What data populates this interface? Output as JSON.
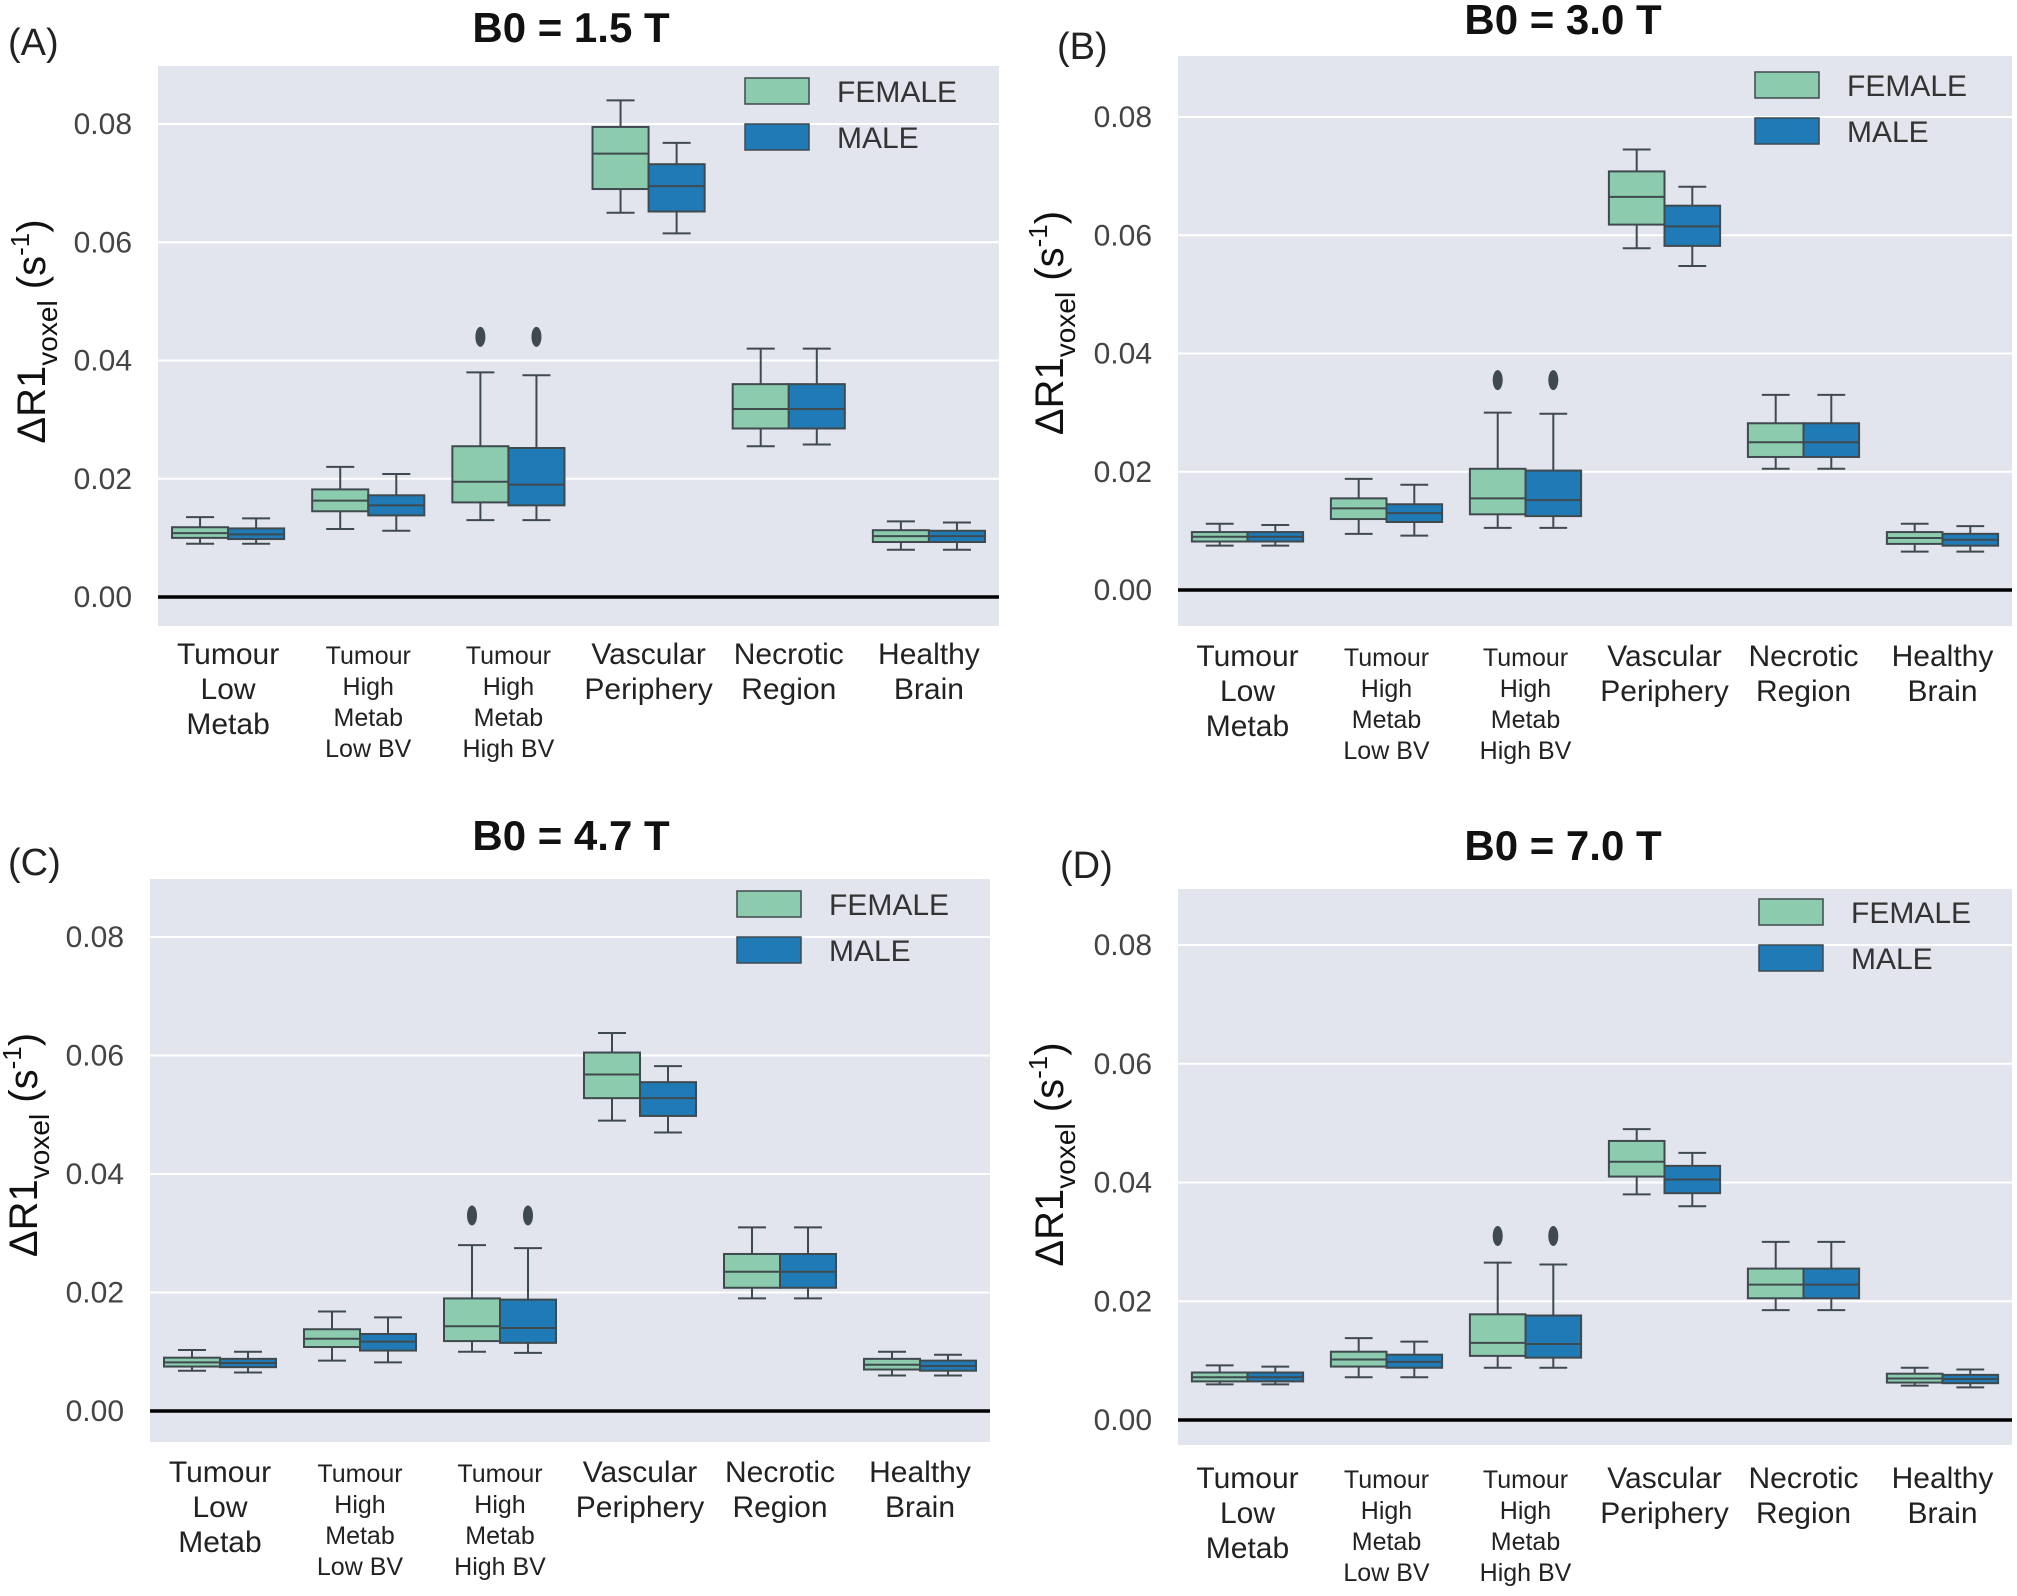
{
  "chart_data": [
    {
      "type": "box",
      "panel": "(A)",
      "title": "B0 = 1.5 T",
      "ylabel": {
        "main": "ΔR1",
        "sub": "voxel",
        "unit_open": " (s",
        "sup": "-1",
        "unit_close": ")"
      },
      "yticks": [
        "0.00",
        "0.02",
        "0.04",
        "0.06",
        "0.08"
      ],
      "ylim": [
        -0.005,
        0.09
      ],
      "legend": "top-right",
      "grid": true,
      "categories": [
        [
          "Tumour",
          "Low",
          "Metab"
        ],
        [
          "Tumour",
          "High",
          "Metab",
          "Low BV"
        ],
        [
          "Tumour",
          "High",
          "Metab",
          "High BV"
        ],
        [
          "Vascular",
          "Periphery"
        ],
        [
          "Necrotic",
          "Region"
        ],
        [
          "Healthy",
          "Brain"
        ]
      ],
      "series": [
        {
          "name": "FEMALE",
          "color": "#8ccbae",
          "boxes": [
            {
              "whislo": 0.009,
              "q1": 0.01,
              "med": 0.0108,
              "q3": 0.0118,
              "whishi": 0.0135,
              "fliers": []
            },
            {
              "whislo": 0.0115,
              "q1": 0.0145,
              "med": 0.0163,
              "q3": 0.0182,
              "whishi": 0.022,
              "fliers": []
            },
            {
              "whislo": 0.013,
              "q1": 0.016,
              "med": 0.0195,
              "q3": 0.0255,
              "whishi": 0.038,
              "fliers": [
                0.044
              ]
            },
            {
              "whislo": 0.065,
              "q1": 0.069,
              "med": 0.075,
              "q3": 0.0795,
              "whishi": 0.084,
              "fliers": []
            },
            {
              "whislo": 0.0255,
              "q1": 0.0285,
              "med": 0.0318,
              "q3": 0.036,
              "whishi": 0.042,
              "fliers": []
            },
            {
              "whislo": 0.008,
              "q1": 0.0093,
              "med": 0.0103,
              "q3": 0.0113,
              "whishi": 0.0128,
              "fliers": []
            }
          ]
        },
        {
          "name": "MALE",
          "color": "#1f7ab5",
          "boxes": [
            {
              "whislo": 0.009,
              "q1": 0.0098,
              "med": 0.0106,
              "q3": 0.0116,
              "whishi": 0.0133,
              "fliers": []
            },
            {
              "whislo": 0.0112,
              "q1": 0.0138,
              "med": 0.0155,
              "q3": 0.0172,
              "whishi": 0.0208,
              "fliers": []
            },
            {
              "whislo": 0.013,
              "q1": 0.0155,
              "med": 0.019,
              "q3": 0.0252,
              "whishi": 0.0375,
              "fliers": [
                0.044
              ]
            },
            {
              "whislo": 0.0615,
              "q1": 0.0652,
              "med": 0.0695,
              "q3": 0.0732,
              "whishi": 0.0768,
              "fliers": []
            },
            {
              "whislo": 0.0258,
              "q1": 0.0285,
              "med": 0.0318,
              "q3": 0.036,
              "whishi": 0.042,
              "fliers": []
            },
            {
              "whislo": 0.008,
              "q1": 0.0093,
              "med": 0.0103,
              "q3": 0.0112,
              "whishi": 0.0126,
              "fliers": []
            }
          ]
        }
      ]
    },
    {
      "type": "box",
      "panel": "(B)",
      "title": "B0 = 3.0 T",
      "ylabel": {
        "main": "ΔR1",
        "sub": "voxel",
        "unit_open": " (s",
        "sup": "-1",
        "unit_close": ")"
      },
      "yticks": [
        "0.00",
        "0.02",
        "0.04",
        "0.06",
        "0.08"
      ],
      "ylim": [
        -0.005,
        0.09
      ],
      "legend": "top-right",
      "grid": true,
      "categories": [
        [
          "Tumour",
          "Low",
          "Metab"
        ],
        [
          "Tumour",
          "High",
          "Metab",
          "Low BV"
        ],
        [
          "Tumour",
          "High",
          "Metab",
          "High BV"
        ],
        [
          "Vascular",
          "Periphery"
        ],
        [
          "Necrotic",
          "Region"
        ],
        [
          "Healthy",
          "Brain"
        ]
      ],
      "series": [
        {
          "name": "FEMALE",
          "color": "#8ccbae",
          "boxes": [
            {
              "whislo": 0.0075,
              "q1": 0.0082,
              "med": 0.009,
              "q3": 0.0098,
              "whishi": 0.0112,
              "fliers": []
            },
            {
              "whislo": 0.0095,
              "q1": 0.012,
              "med": 0.0138,
              "q3": 0.0155,
              "whishi": 0.0188,
              "fliers": []
            },
            {
              "whislo": 0.0105,
              "q1": 0.0128,
              "med": 0.0155,
              "q3": 0.0205,
              "whishi": 0.03,
              "fliers": [
                0.0355
              ]
            },
            {
              "whislo": 0.0578,
              "q1": 0.0618,
              "med": 0.0665,
              "q3": 0.0708,
              "whishi": 0.0745,
              "fliers": []
            },
            {
              "whislo": 0.0205,
              "q1": 0.0225,
              "med": 0.025,
              "q3": 0.0282,
              "whishi": 0.033,
              "fliers": []
            },
            {
              "whislo": 0.0065,
              "q1": 0.0078,
              "med": 0.0088,
              "q3": 0.0098,
              "whishi": 0.0112,
              "fliers": []
            }
          ]
        },
        {
          "name": "MALE",
          "color": "#1f7ab5",
          "boxes": [
            {
              "whislo": 0.0075,
              "q1": 0.0082,
              "med": 0.009,
              "q3": 0.0098,
              "whishi": 0.011,
              "fliers": []
            },
            {
              "whislo": 0.0092,
              "q1": 0.0115,
              "med": 0.013,
              "q3": 0.0145,
              "whishi": 0.0178,
              "fliers": []
            },
            {
              "whislo": 0.0105,
              "q1": 0.0125,
              "med": 0.0152,
              "q3": 0.0202,
              "whishi": 0.0298,
              "fliers": [
                0.0355
              ]
            },
            {
              "whislo": 0.0548,
              "q1": 0.0582,
              "med": 0.0615,
              "q3": 0.065,
              "whishi": 0.0682,
              "fliers": []
            },
            {
              "whislo": 0.0205,
              "q1": 0.0225,
              "med": 0.025,
              "q3": 0.0282,
              "whishi": 0.033,
              "fliers": []
            },
            {
              "whislo": 0.0065,
              "q1": 0.0075,
              "med": 0.0085,
              "q3": 0.0095,
              "whishi": 0.0108,
              "fliers": []
            }
          ]
        }
      ]
    },
    {
      "type": "box",
      "panel": "(C)",
      "title": "B0 = 4.7 T",
      "ylabel": {
        "main": "ΔR1",
        "sub": "voxel",
        "unit_open": " (s",
        "sup": "-1",
        "unit_close": ")"
      },
      "yticks": [
        "0.00",
        "0.02",
        "0.04",
        "0.06",
        "0.08"
      ],
      "ylim": [
        -0.005,
        0.09
      ],
      "legend": "top-right",
      "grid": true,
      "categories": [
        [
          "Tumour",
          "Low",
          "Metab"
        ],
        [
          "Tumour",
          "High",
          "Metab",
          "Low BV"
        ],
        [
          "Tumour",
          "High",
          "Metab",
          "High BV"
        ],
        [
          "Vascular",
          "Periphery"
        ],
        [
          "Necrotic",
          "Region"
        ],
        [
          "Healthy",
          "Brain"
        ]
      ],
      "series": [
        {
          "name": "FEMALE",
          "color": "#8ccbae",
          "boxes": [
            {
              "whislo": 0.0068,
              "q1": 0.0075,
              "med": 0.0082,
              "q3": 0.009,
              "whishi": 0.0103,
              "fliers": []
            },
            {
              "whislo": 0.0085,
              "q1": 0.0108,
              "med": 0.0122,
              "q3": 0.0138,
              "whishi": 0.0168,
              "fliers": []
            },
            {
              "whislo": 0.01,
              "q1": 0.0118,
              "med": 0.0143,
              "q3": 0.019,
              "whishi": 0.028,
              "fliers": [
                0.033
              ]
            },
            {
              "whislo": 0.049,
              "q1": 0.0528,
              "med": 0.0568,
              "q3": 0.0605,
              "whishi": 0.0638,
              "fliers": []
            },
            {
              "whislo": 0.019,
              "q1": 0.0208,
              "med": 0.0235,
              "q3": 0.0265,
              "whishi": 0.031,
              "fliers": []
            },
            {
              "whislo": 0.006,
              "q1": 0.007,
              "med": 0.0078,
              "q3": 0.0088,
              "whishi": 0.01,
              "fliers": []
            }
          ]
        },
        {
          "name": "MALE",
          "color": "#1f7ab5",
          "boxes": [
            {
              "whislo": 0.0065,
              "q1": 0.0074,
              "med": 0.0081,
              "q3": 0.0088,
              "whishi": 0.01,
              "fliers": []
            },
            {
              "whislo": 0.0082,
              "q1": 0.0102,
              "med": 0.0117,
              "q3": 0.013,
              "whishi": 0.0158,
              "fliers": []
            },
            {
              "whislo": 0.0098,
              "q1": 0.0115,
              "med": 0.014,
              "q3": 0.0188,
              "whishi": 0.0275,
              "fliers": [
                0.033
              ]
            },
            {
              "whislo": 0.047,
              "q1": 0.0498,
              "med": 0.0528,
              "q3": 0.0555,
              "whishi": 0.0582,
              "fliers": []
            },
            {
              "whislo": 0.019,
              "q1": 0.0208,
              "med": 0.0235,
              "q3": 0.0265,
              "whishi": 0.031,
              "fliers": []
            },
            {
              "whislo": 0.006,
              "q1": 0.0068,
              "med": 0.0076,
              "q3": 0.0085,
              "whishi": 0.0095,
              "fliers": []
            }
          ]
        }
      ]
    },
    {
      "type": "box",
      "panel": "(D)",
      "title": "B0 = 7.0 T",
      "ylabel": {
        "main": "ΔR1",
        "sub": "voxel",
        "unit_open": " (s",
        "sup": "-1",
        "unit_close": ")"
      },
      "yticks": [
        "0.00",
        "0.02",
        "0.04",
        "0.06",
        "0.08"
      ],
      "ylim": [
        -0.005,
        0.09
      ],
      "legend": "top-right",
      "grid": true,
      "categories": [
        [
          "Tumour",
          "Low",
          "Metab"
        ],
        [
          "Tumour",
          "High",
          "Metab",
          "Low BV"
        ],
        [
          "Tumour",
          "High",
          "Metab",
          "High BV"
        ],
        [
          "Vascular",
          "Periphery"
        ],
        [
          "Necrotic",
          "Region"
        ],
        [
          "Healthy",
          "Brain"
        ]
      ],
      "series": [
        {
          "name": "FEMALE",
          "color": "#8ccbae",
          "boxes": [
            {
              "whislo": 0.006,
              "q1": 0.0065,
              "med": 0.0072,
              "q3": 0.008,
              "whishi": 0.0092,
              "fliers": []
            },
            {
              "whislo": 0.0072,
              "q1": 0.009,
              "med": 0.0102,
              "q3": 0.0115,
              "whishi": 0.0138,
              "fliers": []
            },
            {
              "whislo": 0.0088,
              "q1": 0.0108,
              "med": 0.013,
              "q3": 0.0178,
              "whishi": 0.0265,
              "fliers": [
                0.031
              ]
            },
            {
              "whislo": 0.038,
              "q1": 0.041,
              "med": 0.0435,
              "q3": 0.047,
              "whishi": 0.049,
              "fliers": []
            },
            {
              "whislo": 0.0185,
              "q1": 0.0205,
              "med": 0.0228,
              "q3": 0.0255,
              "whishi": 0.03,
              "fliers": []
            },
            {
              "whislo": 0.0058,
              "q1": 0.0063,
              "med": 0.007,
              "q3": 0.0078,
              "whishi": 0.0088,
              "fliers": []
            }
          ]
        },
        {
          "name": "MALE",
          "color": "#1f7ab5",
          "boxes": [
            {
              "whislo": 0.006,
              "q1": 0.0065,
              "med": 0.0072,
              "q3": 0.008,
              "whishi": 0.009,
              "fliers": []
            },
            {
              "whislo": 0.0072,
              "q1": 0.0088,
              "med": 0.0098,
              "q3": 0.011,
              "whishi": 0.0132,
              "fliers": []
            },
            {
              "whislo": 0.0088,
              "q1": 0.0105,
              "med": 0.0128,
              "q3": 0.0176,
              "whishi": 0.0262,
              "fliers": [
                0.031
              ]
            },
            {
              "whislo": 0.036,
              "q1": 0.0382,
              "med": 0.0405,
              "q3": 0.0428,
              "whishi": 0.045,
              "fliers": []
            },
            {
              "whislo": 0.0185,
              "q1": 0.0205,
              "med": 0.0228,
              "q3": 0.0255,
              "whishi": 0.03,
              "fliers": []
            },
            {
              "whislo": 0.0055,
              "q1": 0.0062,
              "med": 0.0069,
              "q3": 0.0076,
              "whishi": 0.0085,
              "fliers": []
            }
          ]
        }
      ]
    }
  ]
}
